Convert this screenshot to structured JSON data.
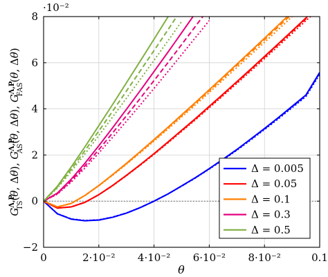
{
  "chart_data": {
    "type": "line",
    "xlabel": "θ",
    "ylabel": "G_TS^{Λ,P}(θ,Δθ), G_AS^{Λ,P}(θ,Δθ), G_FAS^{Λ,P}(θ,Δθ)",
    "xlim": [
      0,
      0.1
    ],
    "ylim": [
      -0.02,
      0.08
    ],
    "y_scale_label": "·10⁻²",
    "x_ticks": [
      "0",
      "2·10⁻²",
      "4·10⁻²",
      "6·10⁻²",
      "8·10⁻²",
      "0.1"
    ],
    "y_ticks": [
      "−2",
      "0",
      "2",
      "4",
      "6",
      "8"
    ],
    "x_tick_values": [
      0,
      0.02,
      0.04,
      0.06,
      0.08,
      0.1
    ],
    "y_tick_values": [
      -0.02,
      0,
      0.02,
      0.04,
      0.06,
      0.08
    ],
    "grid": true,
    "zero_reference_line": true,
    "legend_position": "bottom-right",
    "series": [
      {
        "name": "Δ = 0.005",
        "delta": 0.005,
        "color": "#0000ff",
        "x": [
          0,
          0.005,
          0.01,
          0.015,
          0.02,
          0.025,
          0.03,
          0.035,
          0.04,
          0.045,
          0.05,
          0.055,
          0.06,
          0.065,
          0.07,
          0.075,
          0.08,
          0.085,
          0.09,
          0.095,
          0.1
        ],
        "y": [
          0,
          -0.0055,
          -0.0078,
          -0.0085,
          -0.0082,
          -0.007,
          -0.0052,
          -0.0028,
          0.0,
          0.0031,
          0.0066,
          0.0102,
          0.0141,
          0.0182,
          0.0224,
          0.0269,
          0.0315,
          0.0362,
          0.0411,
          0.046,
          0.0558
        ]
      },
      {
        "name": "Δ = 0.05",
        "delta": 0.05,
        "color": "#ff0000",
        "x": [
          0,
          0.005,
          0.01,
          0.015,
          0.02,
          0.025,
          0.03,
          0.035,
          0.04,
          0.045,
          0.05,
          0.055,
          0.06,
          0.065,
          0.07,
          0.075,
          0.08,
          0.085,
          0.09,
          0.095,
          0.1
        ],
        "y": [
          0,
          -0.003,
          -0.0025,
          -0.0005,
          0.0028,
          0.0068,
          0.0112,
          0.0158,
          0.0206,
          0.0256,
          0.0307,
          0.0358,
          0.0411,
          0.0464,
          0.0518,
          0.0572,
          0.0627,
          0.0682,
          0.0738,
          0.0794,
          0.085
        ]
      },
      {
        "name": "Δ = 0.1",
        "delta": 0.1,
        "color": "#ff8000",
        "x": [
          0,
          0.005,
          0.01,
          0.015,
          0.02,
          0.025,
          0.03,
          0.035,
          0.04,
          0.045,
          0.05,
          0.055,
          0.06,
          0.065,
          0.07,
          0.075,
          0.08,
          0.085,
          0.09
        ],
        "y": [
          0,
          -0.0025,
          -0.001,
          0.0025,
          0.0068,
          0.0115,
          0.0164,
          0.0215,
          0.0267,
          0.032,
          0.0374,
          0.0428,
          0.0483,
          0.0538,
          0.0594,
          0.065,
          0.0706,
          0.0763,
          0.082
        ]
      },
      {
        "name": "Δ = 0.3",
        "delta": 0.3,
        "color": "#e6007e",
        "x": [
          0,
          0.005,
          0.01,
          0.015,
          0.02,
          0.025,
          0.03,
          0.035,
          0.04,
          0.045,
          0.05,
          0.055,
          0.06
        ],
        "y": [
          0,
          0.0035,
          0.0095,
          0.0165,
          0.024,
          0.0318,
          0.0398,
          0.0479,
          0.0562,
          0.0645,
          0.073,
          0.0815,
          0.09
        ]
      },
      {
        "name": "Δ = 0.5",
        "delta": 0.5,
        "color": "#7fb040",
        "x": [
          0,
          0.005,
          0.01,
          0.015,
          0.02,
          0.025,
          0.03,
          0.035,
          0.04,
          0.045,
          0.05
        ],
        "y": [
          0,
          0.0065,
          0.0148,
          0.0236,
          0.0327,
          0.0419,
          0.0513,
          0.0607,
          0.0702,
          0.0798,
          0.0895
        ]
      }
    ]
  }
}
